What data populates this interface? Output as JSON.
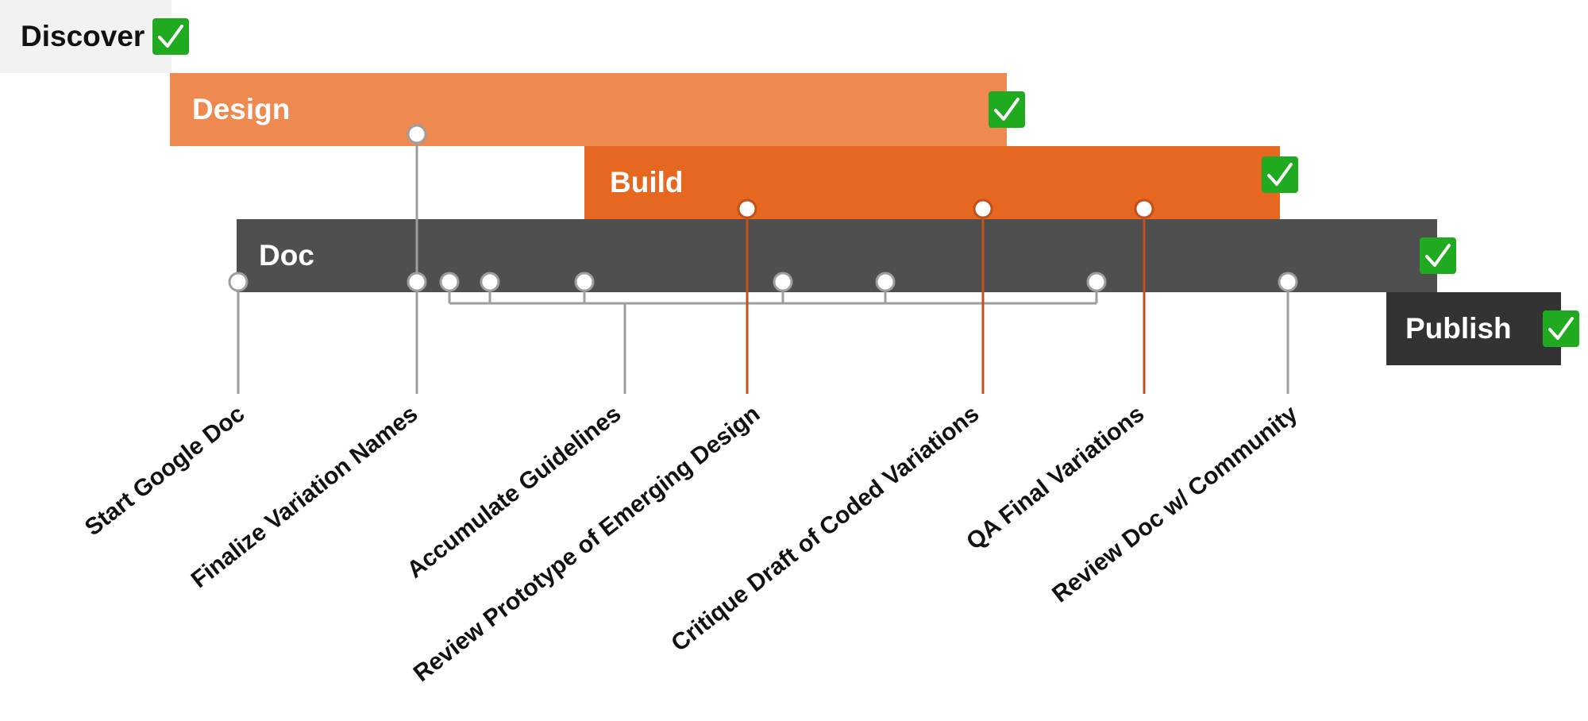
{
  "phases": [
    {
      "id": "discover",
      "label": "Discover",
      "complete": true,
      "color": "#f2f2f2"
    },
    {
      "id": "design",
      "label": "Design",
      "complete": true,
      "color": "#ee8a4f"
    },
    {
      "id": "build",
      "label": "Build",
      "complete": true,
      "color": "#e66720"
    },
    {
      "id": "doc",
      "label": "Doc",
      "complete": true,
      "color": "#4f4f4f"
    },
    {
      "id": "publish",
      "label": "Publish",
      "complete": true,
      "color": "#333333"
    }
  ],
  "milestones": [
    {
      "label": "Start Google Doc",
      "phase": "doc"
    },
    {
      "label": "Finalize Variation Names",
      "phase": "design"
    },
    {
      "label": "Accumulate Guidelines",
      "phase": "doc"
    },
    {
      "label": "Review Prototype of Emerging Design",
      "phase": "build"
    },
    {
      "label": "Critique Draft of Coded Variations",
      "phase": "build"
    },
    {
      "label": "QA Final Variations",
      "phase": "build"
    },
    {
      "label": "Review Doc w/ Community",
      "phase": "doc"
    }
  ],
  "colors": {
    "check": "#1faa1f",
    "gray_connector": "#9e9e9e",
    "orange_connector": "#c1501a"
  },
  "icons": {
    "check": "checkmark-icon",
    "node": "milestone-node-icon"
  }
}
